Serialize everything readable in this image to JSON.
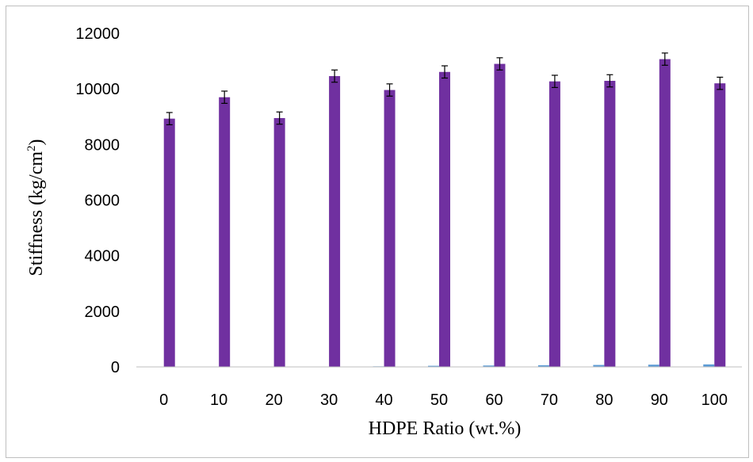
{
  "chart_data": {
    "type": "bar",
    "title": "",
    "xlabel": "HDPE Ratio (wt.%)",
    "ylabel": {
      "main": "Stiffness  (kg/cm",
      "superscript": "2",
      "close": ")"
    },
    "categories": [
      "0",
      "10",
      "20",
      "30",
      "40",
      "50",
      "60",
      "70",
      "80",
      "90",
      "100"
    ],
    "ylim": [
      0,
      12000
    ],
    "yticks": [
      "0",
      "2000",
      "4000",
      "6000",
      "8000",
      "10000",
      "12000"
    ],
    "grid": false,
    "legend": "none",
    "series": [
      {
        "values": [
          0,
          0,
          0,
          10,
          20,
          40,
          50,
          60,
          70,
          80,
          90
        ],
        "color": "#5b9bd5"
      },
      {
        "values": [
          8930,
          9700,
          8950,
          10460,
          9960,
          10610,
          10900,
          10270,
          10290,
          11070,
          10200
        ],
        "errors": [
          220,
          220,
          220,
          220,
          220,
          220,
          220,
          220,
          220,
          220,
          220
        ],
        "color": "#7030a0"
      }
    ]
  }
}
